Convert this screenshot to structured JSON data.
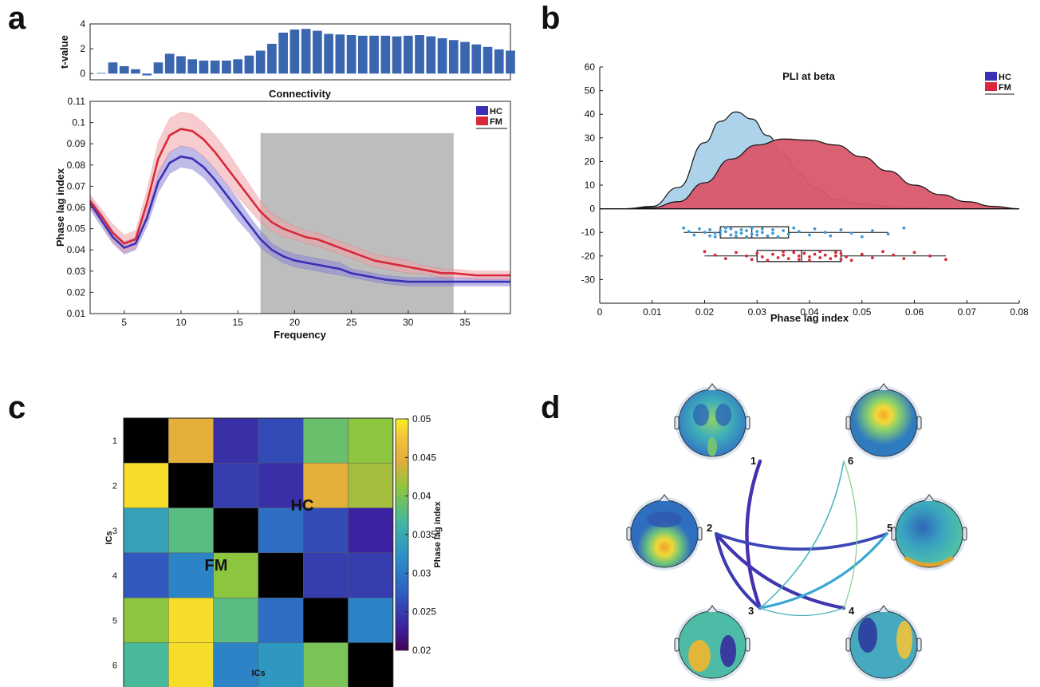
{
  "panels": {
    "a": "a",
    "b": "b",
    "c": "c",
    "d": "d"
  },
  "chart_data": [
    {
      "panel": "a-top",
      "type": "bar",
      "title": "Connectivity",
      "ylabel": "t-value",
      "xlim": [
        2,
        39
      ],
      "ylim": [
        -0.5,
        4
      ],
      "yticks": [
        0,
        2,
        4
      ],
      "x": [
        3,
        4,
        5,
        6,
        7,
        8,
        9,
        10,
        11,
        12,
        13,
        14,
        15,
        16,
        17,
        18,
        19,
        20,
        21,
        22,
        23,
        24,
        25,
        26,
        27,
        28,
        29,
        30,
        31,
        32,
        33,
        34,
        35,
        36,
        37,
        38,
        39
      ],
      "values": [
        0.05,
        0.9,
        0.6,
        0.35,
        -0.15,
        0.9,
        1.6,
        1.4,
        1.15,
        1.05,
        1.05,
        1.05,
        1.15,
        1.45,
        1.85,
        2.4,
        3.3,
        3.55,
        3.6,
        3.45,
        3.2,
        3.15,
        3.1,
        3.05,
        3.05,
        3.05,
        3.0,
        3.05,
        3.1,
        3.0,
        2.85,
        2.7,
        2.55,
        2.35,
        2.15,
        1.95,
        1.85
      ],
      "color": "#3a66b0"
    },
    {
      "panel": "a-main",
      "type": "line",
      "xlabel": "Frequency",
      "ylabel": "Phase lag index",
      "xlim": [
        2,
        39
      ],
      "ylim": [
        0.01,
        0.11
      ],
      "xticks": [
        5,
        10,
        15,
        20,
        25,
        30,
        35
      ],
      "yticks": [
        0.01,
        0.02,
        0.03,
        0.04,
        0.05,
        0.06,
        0.07,
        0.08,
        0.09,
        0.1,
        0.11
      ],
      "shaded_region": [
        17,
        34
      ],
      "x": [
        2,
        3,
        4,
        5,
        6,
        7,
        8,
        9,
        10,
        11,
        12,
        13,
        14,
        15,
        16,
        17,
        18,
        19,
        20,
        21,
        22,
        23,
        24,
        25,
        26,
        27,
        28,
        29,
        30,
        31,
        32,
        33,
        34,
        35,
        36,
        37,
        38,
        39
      ],
      "series": [
        {
          "name": "HC",
          "color": "#3b2fb5",
          "band_color": "#8c85d8",
          "values": [
            0.062,
            0.054,
            0.046,
            0.041,
            0.043,
            0.055,
            0.072,
            0.081,
            0.084,
            0.083,
            0.079,
            0.073,
            0.066,
            0.059,
            0.052,
            0.045,
            0.04,
            0.037,
            0.035,
            0.034,
            0.033,
            0.032,
            0.031,
            0.029,
            0.028,
            0.027,
            0.026,
            0.0255,
            0.025,
            0.025,
            0.025,
            0.025,
            0.025,
            0.025,
            0.025,
            0.025,
            0.025,
            0.025
          ],
          "band": [
            0.003,
            0.003,
            0.003,
            0.003,
            0.003,
            0.004,
            0.005,
            0.005,
            0.005,
            0.005,
            0.005,
            0.005,
            0.005,
            0.005,
            0.004,
            0.004,
            0.003,
            0.003,
            0.003,
            0.003,
            0.003,
            0.003,
            0.003,
            0.002,
            0.002,
            0.002,
            0.002,
            0.002,
            0.002,
            0.002,
            0.002,
            0.002,
            0.002,
            0.002,
            0.002,
            0.002,
            0.002,
            0.002
          ]
        },
        {
          "name": "FM",
          "color": "#d8293a",
          "band_color": "#f2a3a8",
          "values": [
            0.063,
            0.056,
            0.048,
            0.043,
            0.045,
            0.062,
            0.083,
            0.094,
            0.097,
            0.096,
            0.092,
            0.086,
            0.079,
            0.072,
            0.065,
            0.058,
            0.053,
            0.05,
            0.048,
            0.046,
            0.045,
            0.043,
            0.041,
            0.039,
            0.037,
            0.035,
            0.034,
            0.033,
            0.032,
            0.031,
            0.03,
            0.029,
            0.029,
            0.0285,
            0.028,
            0.028,
            0.028,
            0.028
          ],
          "band": [
            0.003,
            0.003,
            0.004,
            0.004,
            0.004,
            0.006,
            0.008,
            0.008,
            0.008,
            0.008,
            0.008,
            0.008,
            0.008,
            0.007,
            0.006,
            0.005,
            0.004,
            0.004,
            0.003,
            0.003,
            0.003,
            0.003,
            0.003,
            0.003,
            0.003,
            0.003,
            0.003,
            0.003,
            0.003,
            0.002,
            0.002,
            0.002,
            0.002,
            0.002,
            0.002,
            0.002,
            0.002,
            0.002
          ]
        }
      ]
    },
    {
      "panel": "b",
      "type": "area",
      "title": "PLI at beta",
      "xlabel": "Phase lag index",
      "xlim": [
        0,
        0.08
      ],
      "ylim": [
        -40,
        60
      ],
      "xticks": [
        0,
        0.01,
        0.02,
        0.03,
        0.04,
        0.05,
        0.06,
        0.07,
        0.08
      ],
      "yticks": [
        -30,
        -20,
        -10,
        0,
        10,
        20,
        30,
        40,
        50,
        60
      ],
      "legend_position": "top-right",
      "series": [
        {
          "name": "HC",
          "color": "#a9d1ea",
          "legend_color": "#3b2fb5",
          "x": [
            0.005,
            0.01,
            0.015,
            0.02,
            0.023,
            0.026,
            0.029,
            0.032,
            0.035,
            0.038,
            0.041,
            0.045,
            0.05,
            0.055,
            0.06,
            0.065,
            0.068
          ],
          "values": [
            0,
            1,
            9,
            28,
            37,
            41,
            38,
            31,
            23,
            15,
            9,
            4,
            2,
            1,
            0.5,
            0.1,
            0
          ]
        },
        {
          "name": "FM",
          "color": "#d9576c",
          "legend_color": "#d8293a",
          "x": [
            0.005,
            0.01,
            0.015,
            0.02,
            0.025,
            0.03,
            0.035,
            0.04,
            0.045,
            0.05,
            0.055,
            0.06,
            0.065,
            0.07,
            0.075,
            0.08
          ],
          "values": [
            0,
            0.5,
            3,
            11,
            21,
            27,
            29.5,
            29,
            27,
            22,
            16,
            10,
            6,
            3,
            1,
            0
          ]
        }
      ],
      "boxplots": [
        {
          "group": "HC",
          "y": -10,
          "whisker_low": 0.016,
          "q1": 0.023,
          "median": 0.029,
          "q3": 0.036,
          "whisker_high": 0.055,
          "points": [
            0.016,
            0.017,
            0.018,
            0.019,
            0.02,
            0.021,
            0.021,
            0.022,
            0.022,
            0.023,
            0.023,
            0.024,
            0.024,
            0.025,
            0.025,
            0.026,
            0.026,
            0.027,
            0.027,
            0.028,
            0.028,
            0.029,
            0.029,
            0.03,
            0.03,
            0.031,
            0.031,
            0.032,
            0.033,
            0.033,
            0.034,
            0.035,
            0.036,
            0.037,
            0.038,
            0.04,
            0.041,
            0.043,
            0.044,
            0.046,
            0.048,
            0.05,
            0.052,
            0.055,
            0.058
          ]
        },
        {
          "group": "FM",
          "y": -20,
          "whisker_low": 0.02,
          "q1": 0.03,
          "median": 0.0385,
          "q3": 0.046,
          "whisker_high": 0.066,
          "points": [
            0.02,
            0.022,
            0.024,
            0.026,
            0.028,
            0.029,
            0.03,
            0.031,
            0.032,
            0.033,
            0.034,
            0.035,
            0.035,
            0.036,
            0.037,
            0.038,
            0.038,
            0.039,
            0.04,
            0.04,
            0.041,
            0.042,
            0.042,
            0.043,
            0.044,
            0.045,
            0.045,
            0.046,
            0.046,
            0.047,
            0.048,
            0.05,
            0.052,
            0.054,
            0.056,
            0.058,
            0.06,
            0.063,
            0.066
          ]
        }
      ]
    },
    {
      "panel": "c",
      "type": "heatmap",
      "xlabel": "ICs",
      "ylabel": "ICs",
      "colorbar_label": "Phase lag index",
      "categories": [
        "1",
        "2",
        "3",
        "4",
        "5",
        "6"
      ],
      "clim": [
        0.02,
        0.05
      ],
      "colorbar_ticks": [
        0.02,
        0.025,
        0.03,
        0.035,
        0.04,
        0.045,
        0.05
      ],
      "upper_label": "HC",
      "lower_label": "FM",
      "values": [
        [
          null,
          0.045,
          0.024,
          0.026,
          0.039,
          0.041
        ],
        [
          0.049,
          null,
          0.025,
          0.024,
          0.045,
          0.042
        ],
        [
          0.034,
          0.038,
          null,
          0.029,
          0.026,
          0.023
        ],
        [
          0.027,
          0.031,
          0.041,
          null,
          0.025,
          0.025
        ],
        [
          0.041,
          0.049,
          0.038,
          0.029,
          null,
          0.031
        ],
        [
          0.037,
          0.049,
          0.031,
          0.033,
          0.04,
          null
        ]
      ],
      "diagonal_color": "#000000"
    },
    {
      "panel": "d",
      "type": "diagram",
      "nodes": [
        "1",
        "2",
        "3",
        "4",
        "5",
        "6"
      ],
      "edges": [
        {
          "from": "1",
          "to": "3",
          "weight": 0.9,
          "color": "#4a2fb0"
        },
        {
          "from": "2",
          "to": "3",
          "weight": 0.8,
          "color": "#3b3ab0"
        },
        {
          "from": "2",
          "to": "4",
          "weight": 0.85,
          "color": "#4136b0"
        },
        {
          "from": "2",
          "to": "5",
          "weight": 0.75,
          "color": "#3c47b5"
        },
        {
          "from": "3",
          "to": "5",
          "weight": 0.6,
          "color": "#3aa6d4"
        },
        {
          "from": "3",
          "to": "6",
          "weight": 0.2,
          "color": "#4bb6c2"
        },
        {
          "from": "3",
          "to": "4",
          "weight": 0.1,
          "color": "#47b0b8"
        },
        {
          "from": "4",
          "to": "6",
          "weight": 0.1,
          "color": "#7fcf8a"
        }
      ]
    }
  ]
}
